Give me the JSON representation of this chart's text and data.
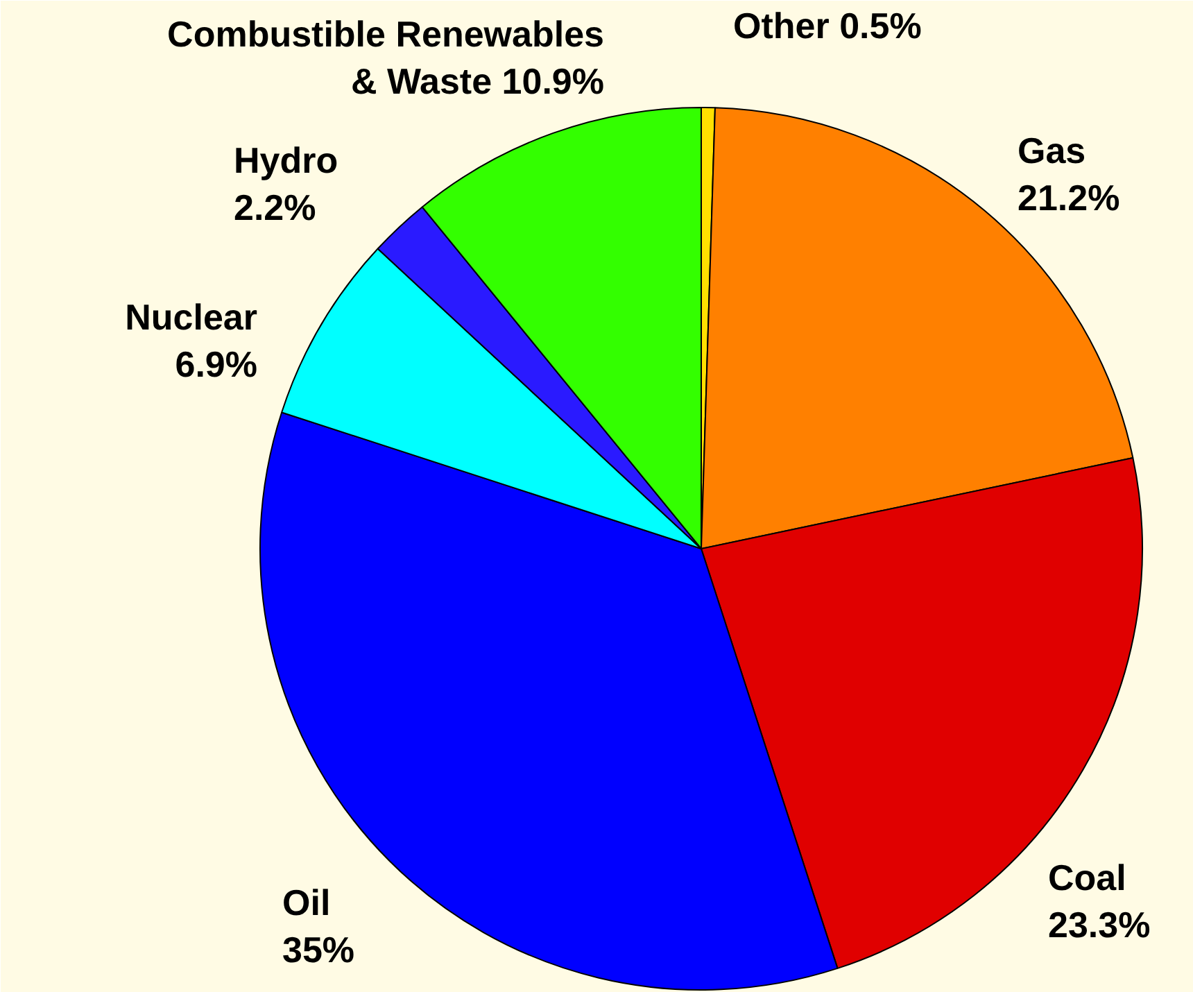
{
  "chart_data": {
    "type": "pie",
    "categories": [
      "Other",
      "Gas",
      "Coal",
      "Oil",
      "Nuclear",
      "Hydro",
      "Combustible Renewables & Waste"
    ],
    "values": [
      0.5,
      21.2,
      23.3,
      35,
      6.9,
      2.2,
      10.9
    ],
    "value_labels": [
      "0.5%",
      "21.2%",
      "23.3%",
      "35%",
      "6.9%",
      "2.2%",
      "10.9%"
    ],
    "colors": [
      "#ffe000",
      "#ff8000",
      "#e00000",
      "#0000ff",
      "#00ffff",
      "#2a1aff",
      "#33ff00"
    ]
  }
}
